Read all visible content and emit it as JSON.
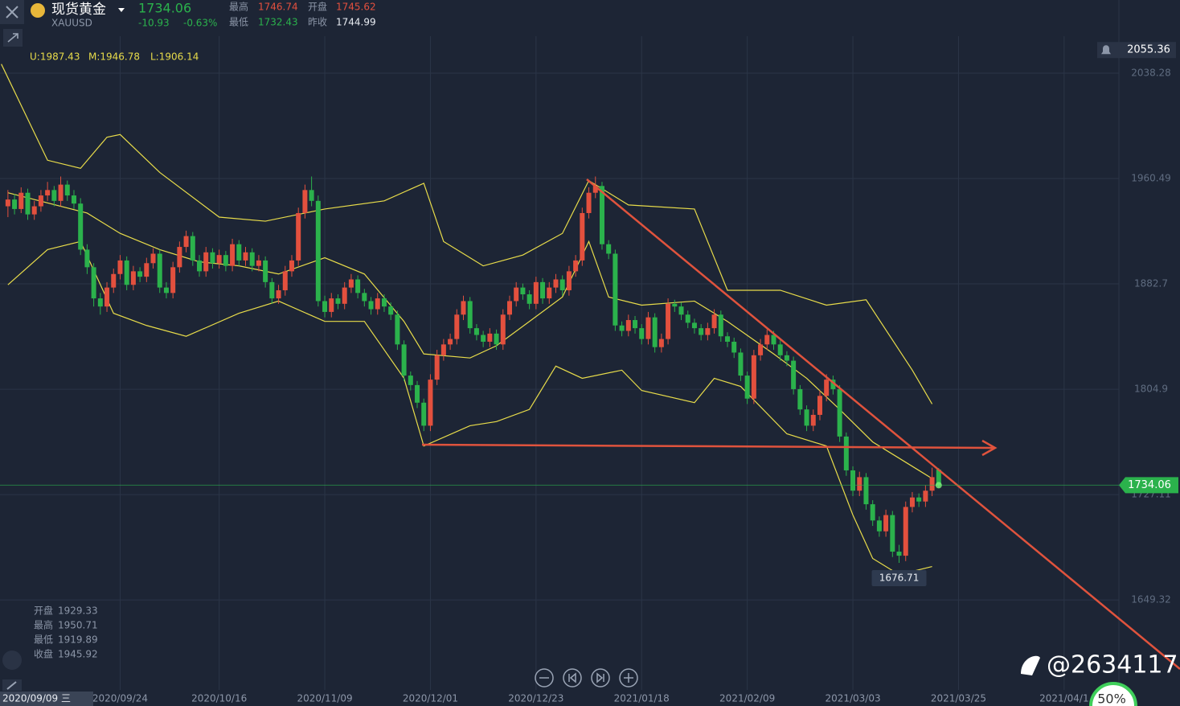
{
  "header": {
    "name": "现货黄金",
    "symbol": "XAUUSD",
    "change": -10.93,
    "change_pct": "-0.63%",
    "high_label": "最高",
    "open_label": "开盘",
    "low_label": "最低",
    "prev_label": "昨收",
    "prev_close": 1744.99,
    "indicator": [
      "U:1987.43",
      "M:1946.78",
      "L:1906.14"
    ],
    "watermark": "@2634117",
    "badge": "50%"
  },
  "cursor": {
    "date": "2020/09/09 三",
    "info": [
      {
        "label": "开盘",
        "value": 1929.33
      },
      {
        "label": "最高",
        "value": 1950.71
      },
      {
        "label": "最低",
        "value": 1919.89
      },
      {
        "label": "收盘",
        "value": 1945.92
      }
    ]
  },
  "chart_data": {
    "type": "candlestick",
    "up_color": "#e3503e",
    "down_color": "#2bb24c",
    "xlim": [
      -1.2,
      168.3
    ],
    "ylim": [
      1582.9,
      2065.6
    ],
    "yticks": [
      1649.32,
      1727.11,
      1804.9,
      1882.7,
      1960.49,
      2038.28
    ],
    "xticks": [
      {
        "value": 17,
        "label": "2020/09/24"
      },
      {
        "value": 32,
        "label": "2020/10/16"
      },
      {
        "value": 48,
        "label": "2020/11/09"
      },
      {
        "value": 64,
        "label": "2020/12/01"
      },
      {
        "value": 80,
        "label": "2020/12/23"
      },
      {
        "value": 96,
        "label": "2021/01/18"
      },
      {
        "value": 112,
        "label": "2021/02/09"
      },
      {
        "value": 128,
        "label": "2021/03/03"
      },
      {
        "value": 144,
        "label": "2021/03/25"
      },
      {
        "value": 160,
        "label": "2021/04/1"
      }
    ],
    "top_label": 2055.36,
    "x": [
      0,
      1,
      2,
      3,
      4,
      5,
      6,
      7,
      8,
      9,
      10,
      11,
      12,
      13,
      14,
      15,
      16,
      17,
      18,
      19,
      20,
      21,
      22,
      23,
      24,
      25,
      26,
      27,
      28,
      29,
      30,
      31,
      32,
      33,
      34,
      35,
      36,
      37,
      38,
      39,
      40,
      41,
      42,
      43,
      44,
      45,
      46,
      47,
      48,
      49,
      50,
      51,
      52,
      53,
      54,
      55,
      56,
      57,
      58,
      59,
      60,
      61,
      62,
      63,
      64,
      65,
      66,
      67,
      68,
      69,
      70,
      71,
      72,
      73,
      74,
      75,
      76,
      77,
      78,
      79,
      80,
      81,
      82,
      83,
      84,
      85,
      86,
      87,
      88,
      89,
      90,
      91,
      92,
      93,
      94,
      95,
      96,
      97,
      98,
      99,
      100,
      101,
      102,
      103,
      104,
      105,
      106,
      107,
      108,
      109,
      110,
      111,
      112,
      113,
      114,
      115,
      116,
      117,
      118,
      119,
      120,
      121,
      122,
      123,
      124,
      125,
      126,
      127,
      128,
      129,
      130,
      131,
      132,
      133,
      134,
      135,
      136,
      137,
      138,
      139,
      140,
      141
    ],
    "ohlc": [
      [
        1940,
        1952,
        1932,
        1945
      ],
      [
        1945,
        1949,
        1934,
        1938
      ],
      [
        1938,
        1954,
        1935,
        1950
      ],
      [
        1950,
        1953,
        1930,
        1934
      ],
      [
        1934,
        1944,
        1930,
        1940
      ],
      [
        1940,
        1952,
        1936,
        1948
      ],
      [
        1948,
        1958,
        1944,
        1952
      ],
      [
        1952,
        1955,
        1940,
        1944
      ],
      [
        1944,
        1962,
        1940,
        1956
      ],
      [
        1956,
        1959,
        1944,
        1948
      ],
      [
        1948,
        1952,
        1938,
        1942
      ],
      [
        1942,
        1946,
        1904,
        1908
      ],
      [
        1908,
        1912,
        1890,
        1895
      ],
      [
        1895,
        1898,
        1866,
        1872
      ],
      [
        1872,
        1876,
        1860,
        1866
      ],
      [
        1866,
        1884,
        1862,
        1880
      ],
      [
        1880,
        1894,
        1876,
        1890
      ],
      [
        1890,
        1904,
        1886,
        1900
      ],
      [
        1900,
        1903,
        1878,
        1882
      ],
      [
        1882,
        1896,
        1878,
        1892
      ],
      [
        1892,
        1895,
        1884,
        1888
      ],
      [
        1888,
        1902,
        1884,
        1898
      ],
      [
        1898,
        1909,
        1894,
        1905
      ],
      [
        1905,
        1908,
        1876,
        1880
      ],
      [
        1880,
        1884,
        1872,
        1876
      ],
      [
        1876,
        1899,
        1872,
        1895
      ],
      [
        1895,
        1914,
        1891,
        1910
      ],
      [
        1910,
        1922,
        1906,
        1918
      ],
      [
        1918,
        1921,
        1896,
        1900
      ],
      [
        1900,
        1904,
        1888,
        1892
      ],
      [
        1892,
        1910,
        1888,
        1906
      ],
      [
        1906,
        1909,
        1894,
        1898
      ],
      [
        1898,
        1908,
        1894,
        1904
      ],
      [
        1904,
        1907,
        1892,
        1896
      ],
      [
        1896,
        1916,
        1892,
        1912
      ],
      [
        1912,
        1915,
        1896,
        1900
      ],
      [
        1900,
        1910,
        1896,
        1906
      ],
      [
        1906,
        1909,
        1892,
        1896
      ],
      [
        1896,
        1904,
        1892,
        1900
      ],
      [
        1900,
        1903,
        1880,
        1884
      ],
      [
        1884,
        1887,
        1868,
        1872
      ],
      [
        1872,
        1882,
        1868,
        1878
      ],
      [
        1878,
        1896,
        1874,
        1892
      ],
      [
        1892,
        1904,
        1888,
        1900
      ],
      [
        1900,
        1939,
        1896,
        1935
      ],
      [
        1935,
        1956,
        1931,
        1952
      ],
      [
        1952,
        1962,
        1940,
        1944
      ],
      [
        1944,
        1948,
        1866,
        1870
      ],
      [
        1870,
        1874,
        1858,
        1862
      ],
      [
        1862,
        1876,
        1858,
        1872
      ],
      [
        1872,
        1875,
        1864,
        1868
      ],
      [
        1868,
        1884,
        1864,
        1880
      ],
      [
        1880,
        1890,
        1876,
        1886
      ],
      [
        1886,
        1889,
        1872,
        1876
      ],
      [
        1876,
        1879,
        1866,
        1870
      ],
      [
        1870,
        1873,
        1860,
        1864
      ],
      [
        1864,
        1876,
        1860,
        1872
      ],
      [
        1872,
        1875,
        1862,
        1866
      ],
      [
        1866,
        1869,
        1856,
        1860
      ],
      [
        1860,
        1863,
        1834,
        1838
      ],
      [
        1838,
        1841,
        1811,
        1815
      ],
      [
        1815,
        1818,
        1804,
        1808
      ],
      [
        1808,
        1811,
        1791,
        1795
      ],
      [
        1795,
        1798,
        1774,
        1778
      ],
      [
        1778,
        1816,
        1774,
        1812
      ],
      [
        1812,
        1834,
        1808,
        1830
      ],
      [
        1830,
        1842,
        1826,
        1838
      ],
      [
        1838,
        1846,
        1834,
        1842
      ],
      [
        1842,
        1864,
        1838,
        1860
      ],
      [
        1860,
        1874,
        1856,
        1870
      ],
      [
        1870,
        1873,
        1846,
        1850
      ],
      [
        1850,
        1853,
        1841,
        1845
      ],
      [
        1845,
        1848,
        1836,
        1840
      ],
      [
        1840,
        1850,
        1836,
        1846
      ],
      [
        1846,
        1849,
        1834,
        1838
      ],
      [
        1838,
        1864,
        1834,
        1860
      ],
      [
        1860,
        1874,
        1856,
        1870
      ],
      [
        1870,
        1884,
        1866,
        1880
      ],
      [
        1880,
        1883,
        1871,
        1875
      ],
      [
        1875,
        1878,
        1864,
        1868
      ],
      [
        1868,
        1888,
        1864,
        1884
      ],
      [
        1884,
        1887,
        1868,
        1872
      ],
      [
        1872,
        1884,
        1868,
        1880
      ],
      [
        1880,
        1890,
        1876,
        1886
      ],
      [
        1886,
        1889,
        1874,
        1878
      ],
      [
        1878,
        1896,
        1874,
        1892
      ],
      [
        1892,
        1904,
        1888,
        1900
      ],
      [
        1900,
        1939,
        1896,
        1935
      ],
      [
        1935,
        1954,
        1931,
        1950
      ],
      [
        1950,
        1962,
        1946,
        1955
      ],
      [
        1955,
        1958,
        1908,
        1912
      ],
      [
        1912,
        1915,
        1901,
        1905
      ],
      [
        1905,
        1908,
        1848,
        1852
      ],
      [
        1852,
        1855,
        1844,
        1848
      ],
      [
        1848,
        1860,
        1844,
        1856
      ],
      [
        1856,
        1859,
        1846,
        1850
      ],
      [
        1850,
        1853,
        1838,
        1842
      ],
      [
        1842,
        1862,
        1838,
        1858
      ],
      [
        1858,
        1861,
        1832,
        1836
      ],
      [
        1836,
        1846,
        1832,
        1842
      ],
      [
        1842,
        1872,
        1838,
        1868
      ],
      [
        1868,
        1871,
        1862,
        1866
      ],
      [
        1866,
        1869,
        1856,
        1860
      ],
      [
        1860,
        1863,
        1850,
        1854
      ],
      [
        1854,
        1857,
        1846,
        1850
      ],
      [
        1850,
        1853,
        1841,
        1845
      ],
      [
        1845,
        1854,
        1841,
        1850
      ],
      [
        1850,
        1864,
        1846,
        1860
      ],
      [
        1860,
        1863,
        1840,
        1844
      ],
      [
        1844,
        1847,
        1836,
        1840
      ],
      [
        1840,
        1843,
        1828,
        1832
      ],
      [
        1832,
        1835,
        1811,
        1815
      ],
      [
        1815,
        1818,
        1794,
        1798
      ],
      [
        1798,
        1834,
        1794,
        1830
      ],
      [
        1830,
        1842,
        1826,
        1838
      ],
      [
        1838,
        1849,
        1834,
        1845
      ],
      [
        1845,
        1848,
        1834,
        1838
      ],
      [
        1838,
        1841,
        1826,
        1830
      ],
      [
        1830,
        1833,
        1822,
        1826
      ],
      [
        1826,
        1829,
        1801,
        1805
      ],
      [
        1805,
        1808,
        1786,
        1790
      ],
      [
        1790,
        1793,
        1774,
        1778
      ],
      [
        1778,
        1790,
        1774,
        1786
      ],
      [
        1786,
        1804,
        1782,
        1800
      ],
      [
        1800,
        1816,
        1796,
        1812
      ],
      [
        1812,
        1815,
        1801,
        1805
      ],
      [
        1805,
        1808,
        1766,
        1770
      ],
      [
        1770,
        1773,
        1741,
        1745
      ],
      [
        1745,
        1748,
        1726,
        1730
      ],
      [
        1730,
        1744,
        1726,
        1740
      ],
      [
        1740,
        1743,
        1716,
        1720
      ],
      [
        1720,
        1723,
        1704,
        1708
      ],
      [
        1708,
        1711,
        1696,
        1700
      ],
      [
        1700,
        1716,
        1696,
        1712
      ],
      [
        1712,
        1715,
        1681,
        1685
      ],
      [
        1685,
        1690,
        1676.71,
        1682
      ],
      [
        1682,
        1722,
        1678,
        1718
      ],
      [
        1718,
        1729,
        1714,
        1725
      ],
      [
        1725,
        1728,
        1718,
        1722
      ],
      [
        1722,
        1734,
        1718,
        1730
      ],
      [
        1730,
        1747,
        1726,
        1740
      ],
      [
        1745.62,
        1746.74,
        1732.43,
        1734.06
      ]
    ],
    "bands": [
      {
        "color": "#e8dc4a",
        "x": [
          -1,
          6,
          11,
          15,
          17,
          23,
          32,
          39,
          48,
          57,
          63,
          66,
          72,
          78,
          84,
          88,
          94,
          104,
          109,
          117,
          124,
          130,
          137,
          140
        ],
        "values": [
          2045,
          1974,
          1968,
          1991,
          1993,
          1965,
          1932,
          1929,
          1938,
          1944,
          1957,
          1914,
          1896,
          1904,
          1920,
          1959,
          1941,
          1938,
          1878,
          1878,
          1867,
          1871,
          1819,
          1794
        ]
      },
      {
        "color": "#e8dc4a",
        "x": [
          0,
          12,
          17,
          23,
          29,
          35,
          41,
          48,
          54,
          60,
          63,
          70,
          74,
          79,
          84,
          88,
          91,
          96,
          104,
          109,
          116,
          121,
          126,
          131,
          135,
          140
        ],
        "values": [
          1950,
          1935,
          1920,
          1908,
          1899,
          1896,
          1890,
          1902,
          1890,
          1855,
          1831,
          1828,
          1837,
          1855,
          1873,
          1914,
          1873,
          1867,
          1870,
          1855,
          1831,
          1813,
          1790,
          1766,
          1754,
          1739
        ]
      },
      {
        "color": "#e8dc4a",
        "x": [
          0,
          6,
          11,
          16,
          21,
          27,
          35,
          41,
          48,
          54,
          60,
          63,
          70,
          74,
          79,
          83,
          87,
          93,
          96,
          104,
          107,
          111,
          118,
          124,
          128,
          131,
          135,
          140
        ],
        "values": [
          1882,
          1908,
          1914,
          1861,
          1852,
          1844,
          1861,
          1870,
          1855,
          1855,
          1813,
          1763,
          1778,
          1781,
          1790,
          1822,
          1813,
          1819,
          1804,
          1795,
          1813,
          1807,
          1772,
          1763,
          1712,
          1680,
          1668,
          1674
        ]
      }
    ]
  }
}
